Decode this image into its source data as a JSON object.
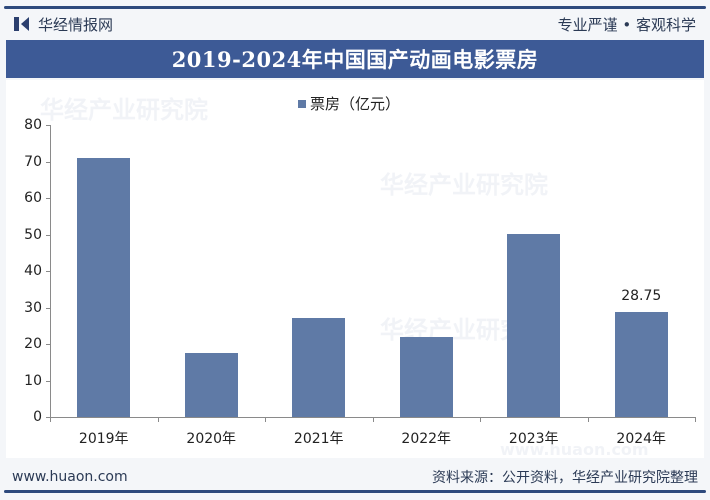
{
  "header": {
    "brand": "华经情报网",
    "slogan": "专业严谨 • 客观科学"
  },
  "title": "2019-2024年中国国产动画电影票房",
  "legend": {
    "label": "票房（亿元）",
    "color": "#5f7aa6"
  },
  "footer": {
    "website": "www.huaon.com",
    "source": "资料来源：公开资料，华经产业研究院整理"
  },
  "watermarks": [
    "华经产业研究院",
    "华经产业研究院",
    "华经产业研究院",
    "www.huaon.com"
  ],
  "y_ticks": [
    "0",
    "10",
    "20",
    "30",
    "40",
    "50",
    "60",
    "70",
    "80"
  ],
  "bar_labels": [
    "",
    "",
    "",
    "",
    "",
    "28.75"
  ],
  "chart_data": {
    "type": "bar",
    "title": "2019-2024年中国国产动画电影票房",
    "categories": [
      "2019年",
      "2020年",
      "2021年",
      "2022年",
      "2023年",
      "2024年"
    ],
    "series": [
      {
        "name": "票房（亿元）",
        "values": [
          71,
          17.5,
          27.1,
          21.9,
          50.1,
          28.75
        ],
        "color": "#5f7aa6"
      }
    ],
    "data_labels": {
      "2024年": "28.75"
    },
    "xlabel": "",
    "ylabel": "",
    "ylim": [
      0,
      80
    ],
    "yticks": [
      0,
      10,
      20,
      30,
      40,
      50,
      60,
      70,
      80
    ],
    "grid": false,
    "legend_position": "top"
  }
}
